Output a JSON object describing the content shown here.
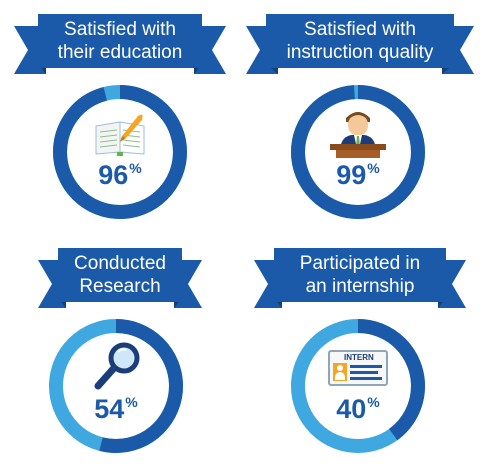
{
  "colors": {
    "ring_dark": "#1b5aa8",
    "ring_light": "#3fa8e0",
    "banner": "#1b5aa8",
    "banner_fold": "#103f7a"
  },
  "stats": [
    {
      "title": "Satisfied with their education",
      "title_line1": "Satisfied with",
      "title_line2": "their education",
      "value": "96",
      "unit": "%",
      "fraction": 0.96,
      "icon": "notebook-pen-icon"
    },
    {
      "title": "Satisfied with instruction quality",
      "title_line1": "Satisfied with",
      "title_line2": "instruction quality",
      "value": "99",
      "unit": "%",
      "fraction": 0.99,
      "icon": "teacher-at-podium-icon"
    },
    {
      "title": "Conducted Research",
      "title_line1": "Conducted",
      "title_line2": "Research",
      "value": "54",
      "unit": "%",
      "fraction": 0.54,
      "icon": "magnifying-glass-icon"
    },
    {
      "title": "Participated in an internship",
      "title_line1": "Participated in",
      "title_line2": "an internship",
      "value": "40",
      "unit": "%",
      "fraction": 0.4,
      "icon": "intern-badge-icon",
      "badge_text": "INTERN"
    }
  ]
}
